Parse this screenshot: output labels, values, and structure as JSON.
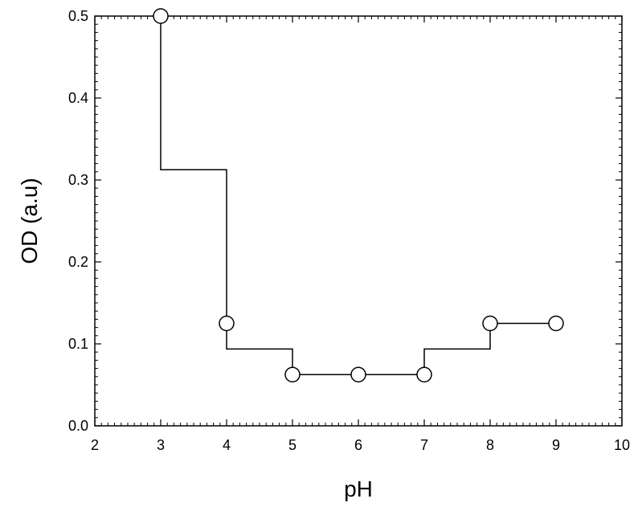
{
  "chart_data": {
    "type": "line",
    "title": "",
    "xlabel": "pH",
    "ylabel": "OD (a.u)",
    "xlim": [
      2,
      10
    ],
    "ylim": [
      0.0,
      0.5
    ],
    "x_ticks": [
      "2",
      "3",
      "4",
      "5",
      "6",
      "7",
      "8",
      "9",
      "10"
    ],
    "y_ticks": [
      "0.0",
      "0.1",
      "0.2",
      "0.3",
      "0.4",
      "0.5"
    ],
    "grid": false,
    "legend": "none",
    "series": [
      {
        "x": [
          3,
          4,
          5,
          6,
          7,
          8,
          9
        ],
        "y": [
          0.5,
          0.125,
          0.0625,
          0.0625,
          0.0625,
          0.125,
          0.125
        ],
        "marker": "open-circle"
      }
    ],
    "connector": {
      "style": "step",
      "x": [
        3,
        3,
        4,
        4,
        5,
        5,
        7,
        7,
        8,
        8,
        9
      ],
      "y": [
        0.5,
        0.3125,
        0.3125,
        0.09375,
        0.09375,
        0.0625,
        0.0625,
        0.09375,
        0.09375,
        0.125,
        0.125
      ]
    },
    "colors": {
      "line": "#000000",
      "marker_fill": "#ffffff",
      "marker_stroke": "#000000"
    }
  }
}
